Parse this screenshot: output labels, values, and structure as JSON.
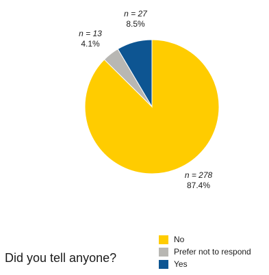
{
  "chart_data": {
    "type": "pie",
    "title": "Did you tell anyone?",
    "legend_position": "bottom-right",
    "slices": [
      {
        "name": "No",
        "n": 278,
        "percent": 87.4,
        "n_text": "n = 278",
        "pct_text": "87.4%",
        "color": "#FFCC00"
      },
      {
        "name": "Prefer not to respond",
        "n": 13,
        "percent": 4.1,
        "n_text": "n = 13",
        "pct_text": "4.1%",
        "color": "#B8B7B3"
      },
      {
        "name": "Yes",
        "n": 27,
        "percent": 8.5,
        "n_text": "n = 27",
        "pct_text": "8.5%",
        "color": "#0D5592"
      }
    ],
    "legend": [
      {
        "label": "No",
        "color": "#FFCC00"
      },
      {
        "label": "Prefer not to respond",
        "color": "#B8B7B3"
      },
      {
        "label": "Yes",
        "color": "#0D5592"
      }
    ]
  }
}
